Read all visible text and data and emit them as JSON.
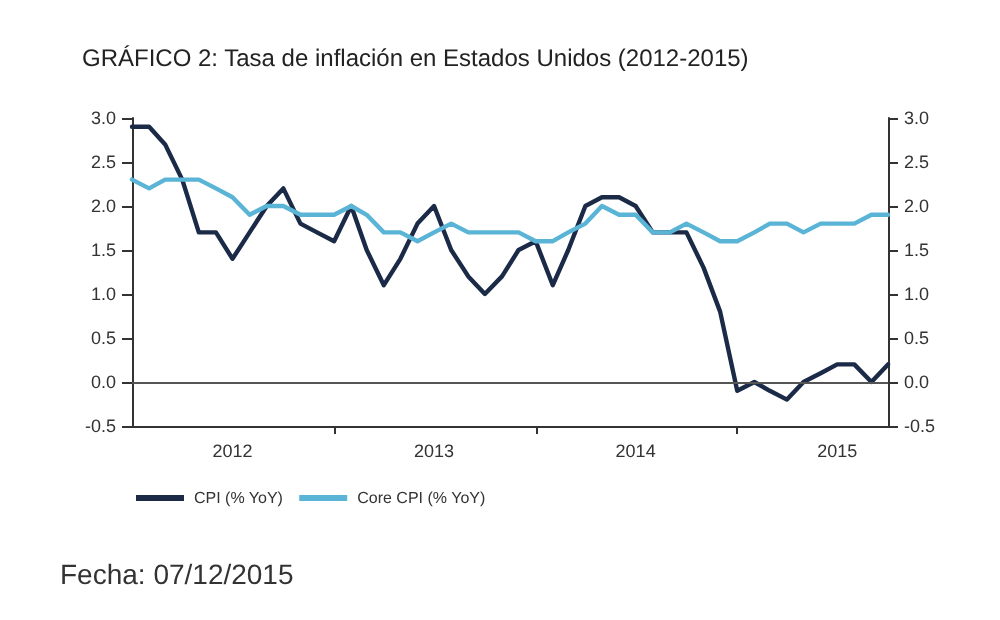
{
  "chart_data": {
    "type": "line",
    "title": "GRÁFICO 2: Tasa de inflación en Estados Unidos (2012-2015)",
    "annotations": [
      "Fecha: 07/12/2015"
    ],
    "x": [
      "2012-01",
      "2012-02",
      "2012-03",
      "2012-04",
      "2012-05",
      "2012-06",
      "2012-07",
      "2012-08",
      "2012-09",
      "2012-10",
      "2012-11",
      "2012-12",
      "2013-01",
      "2013-02",
      "2013-03",
      "2013-04",
      "2013-05",
      "2013-06",
      "2013-07",
      "2013-08",
      "2013-09",
      "2013-10",
      "2013-11",
      "2013-12",
      "2014-01",
      "2014-02",
      "2014-03",
      "2014-04",
      "2014-05",
      "2014-06",
      "2014-07",
      "2014-08",
      "2014-09",
      "2014-10",
      "2014-11",
      "2014-12",
      "2015-01",
      "2015-02",
      "2015-03",
      "2015-04",
      "2015-05",
      "2015-06",
      "2015-07",
      "2015-08",
      "2015-09",
      "2015-10"
    ],
    "series": [
      {
        "name": "CPI (% YoY)",
        "color": "#1b2a47",
        "values": [
          2.9,
          2.9,
          2.7,
          2.3,
          1.7,
          1.7,
          1.4,
          1.7,
          2.0,
          2.2,
          1.8,
          1.7,
          1.6,
          2.0,
          1.5,
          1.1,
          1.4,
          1.8,
          2.0,
          1.5,
          1.2,
          1.0,
          1.2,
          1.5,
          1.6,
          1.1,
          1.5,
          2.0,
          2.1,
          2.1,
          2.0,
          1.7,
          1.7,
          1.7,
          1.3,
          0.8,
          -0.1,
          0.0,
          -0.1,
          -0.2,
          0.0,
          0.1,
          0.2,
          0.2,
          0.0,
          0.2
        ]
      },
      {
        "name": "Core CPI (% YoY)",
        "color": "#5ab4d6",
        "values": [
          2.3,
          2.2,
          2.3,
          2.3,
          2.3,
          2.2,
          2.1,
          1.9,
          2.0,
          2.0,
          1.9,
          1.9,
          1.9,
          2.0,
          1.9,
          1.7,
          1.7,
          1.6,
          1.7,
          1.8,
          1.7,
          1.7,
          1.7,
          1.7,
          1.6,
          1.6,
          1.7,
          1.8,
          2.0,
          1.9,
          1.9,
          1.7,
          1.7,
          1.8,
          1.7,
          1.6,
          1.6,
          1.7,
          1.8,
          1.8,
          1.7,
          1.8,
          1.8,
          1.8,
          1.9,
          1.9
        ]
      }
    ],
    "xlim": [
      "2012-01",
      "2015-10"
    ],
    "xticks": [
      {
        "value": "2012-07-01",
        "label": "2012"
      },
      {
        "value": "2013-01",
        "label": null
      },
      {
        "value": "2013-07-01",
        "label": "2013"
      },
      {
        "value": "2014-01",
        "label": null
      },
      {
        "value": "2014-07-01",
        "label": "2014"
      },
      {
        "value": "2015-01",
        "label": null
      },
      {
        "value": "2015-07-01",
        "label": "2015"
      }
    ],
    "ylim": [
      -0.5,
      3.0
    ],
    "yticks": [
      -0.5,
      {
        "value": 0,
        "label": "0.0"
      },
      0.5,
      {
        "value": 1,
        "label": "1.0"
      },
      1.5,
      {
        "value": 2,
        "label": "2.0"
      },
      2.5,
      {
        "value": 3,
        "label": "3.0"
      }
    ],
    "y2lim": [
      -0.5,
      3.0
    ],
    "y2ticks": [
      -0.5,
      {
        "value": 0,
        "label": "0.0"
      },
      0.5,
      {
        "value": 1,
        "label": "1.0"
      },
      1.5,
      {
        "value": 2,
        "label": "2.0"
      },
      2.5,
      {
        "value": 3,
        "label": "3.0"
      }
    ],
    "ref_lines": [
      {
        "axis": "y",
        "value": 0,
        "color": "#555555"
      }
    ],
    "grid": false,
    "legend": "bottom left",
    "marker": "none",
    "line_style": "solid"
  }
}
